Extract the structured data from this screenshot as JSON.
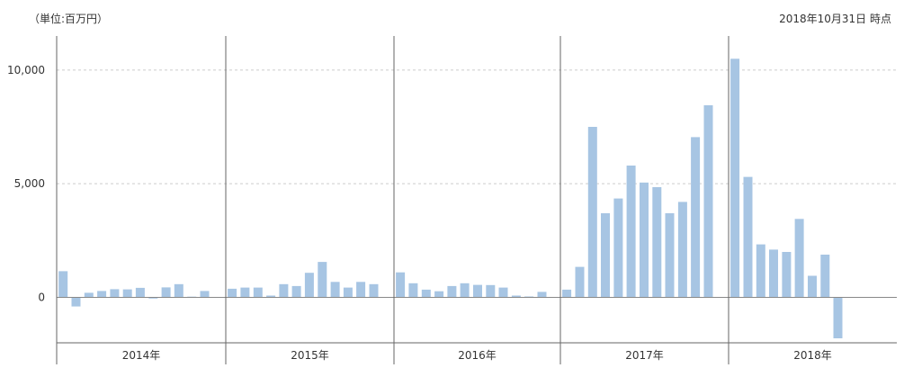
{
  "header": {
    "unit_label": "（単位:百万円）",
    "as_of": "2018年10月31日 時点"
  },
  "colors": {
    "bar": "#a7c5e3",
    "grid": "#cccccc",
    "axis": "#666666",
    "zero_line": "#888888"
  },
  "chart_data": {
    "type": "bar",
    "title": "",
    "xlabel": "",
    "ylabel": "（単位:百万円）",
    "ylim": [
      -2000,
      11500
    ],
    "yticks": [
      0,
      5000,
      10000
    ],
    "ytick_labels": [
      "0",
      "5,000",
      "10,000"
    ],
    "grid": true,
    "groups": [
      {
        "label": "2014年",
        "values": [
          1150,
          -400,
          200,
          280,
          360,
          350,
          420,
          -50,
          440,
          580,
          30,
          280
        ]
      },
      {
        "label": "2015年",
        "values": [
          380,
          430,
          430,
          80,
          580,
          500,
          1080,
          1560,
          680,
          430,
          680,
          580
        ]
      },
      {
        "label": "2016年",
        "values": [
          1100,
          620,
          340,
          270,
          500,
          620,
          550,
          540,
          430,
          80,
          40,
          240
        ]
      },
      {
        "label": "2017年",
        "values": [
          340,
          1340,
          7500,
          3700,
          4350,
          5800,
          5050,
          4850,
          3700,
          4200,
          7050,
          8450
        ]
      },
      {
        "label": "2018年",
        "values": [
          10500,
          5300,
          2330,
          2100,
          2000,
          3450,
          950,
          1880,
          -1800
        ]
      }
    ]
  }
}
